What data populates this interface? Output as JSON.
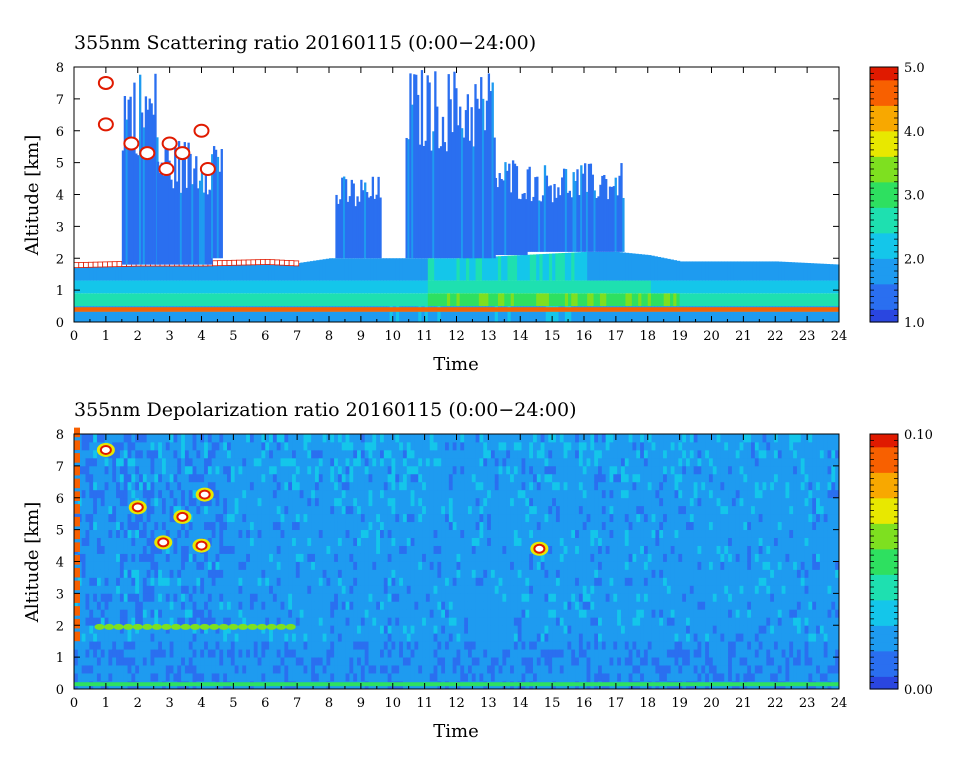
{
  "colors": {
    "colormap": [
      "#2a46e0",
      "#2a6ff0",
      "#1e9bf0",
      "#14c6ea",
      "#1ee0b0",
      "#2ee060",
      "#7ee020",
      "#e8e800",
      "#f8a800",
      "#f86000",
      "#e01a00"
    ],
    "cloud_outline": "#ffffff",
    "ground_line": "#e07020"
  },
  "chart_data": [
    {
      "type": "heatmap",
      "title": "355nm Scattering ratio  20160115 (0:00−24:00)",
      "xlabel": "Time",
      "ylabel": "Altitude [km]",
      "xlim": [
        0,
        24
      ],
      "ylim": [
        0,
        8
      ],
      "xticks": [
        "0",
        "1",
        "2",
        "3",
        "4",
        "5",
        "6",
        "7",
        "8",
        "9",
        "10",
        "11",
        "12",
        "13",
        "14",
        "15",
        "16",
        "17",
        "18",
        "19",
        "20",
        "21",
        "22",
        "23",
        "24"
      ],
      "yticks": [
        "0",
        "1",
        "2",
        "3",
        "4",
        "5",
        "6",
        "7",
        "8"
      ],
      "colorbar": {
        "range": [
          1.0,
          5.0
        ],
        "ticks": [
          "1.0",
          "2.0",
          "3.0",
          "4.0",
          "5.0"
        ]
      },
      "features": {
        "boundary_layer_top_km": [
          [
            0,
            1.8
          ],
          [
            2,
            1.85
          ],
          [
            4,
            1.85
          ],
          [
            6,
            1.9
          ],
          [
            7,
            1.85
          ],
          [
            8,
            2.0
          ],
          [
            10,
            2.0
          ],
          [
            12,
            2.0
          ],
          [
            14,
            2.1
          ],
          [
            16,
            2.2
          ],
          [
            17,
            2.2
          ],
          [
            18,
            2.1
          ],
          [
            19,
            1.9
          ],
          [
            20,
            1.9
          ],
          [
            22,
            1.9
          ],
          [
            24,
            1.8
          ]
        ],
        "ground_layer_km": 0.4,
        "cloud_columns": [
          {
            "start": 1.5,
            "end": 2.6,
            "base": 1.8,
            "top": 8.0
          },
          {
            "start": 2.6,
            "end": 4.3,
            "base": 1.8,
            "top": 5.8
          },
          {
            "start": 4.3,
            "end": 4.6,
            "base": 2.0,
            "top": 6.0
          },
          {
            "start": 8.2,
            "end": 9.6,
            "base": 2.0,
            "top": 4.6
          },
          {
            "start": 10.4,
            "end": 13.2,
            "base": 2.0,
            "top": 8.0
          },
          {
            "start": 13.2,
            "end": 14.2,
            "base": 2.1,
            "top": 5.2
          },
          {
            "start": 14.2,
            "end": 17.2,
            "base": 2.2,
            "top": 5.0
          }
        ]
      }
    },
    {
      "type": "heatmap",
      "title": "355nm Depolarization ratio  20160115 (0:00−24:00)",
      "xlabel": "Time",
      "ylabel": "Altitude [km]",
      "xlim": [
        0,
        24
      ],
      "ylim": [
        0,
        8
      ],
      "xticks": [
        "0",
        "1",
        "2",
        "3",
        "4",
        "5",
        "6",
        "7",
        "8",
        "9",
        "10",
        "11",
        "12",
        "13",
        "14",
        "15",
        "16",
        "17",
        "18",
        "19",
        "20",
        "21",
        "22",
        "23",
        "24"
      ],
      "yticks": [
        "0",
        "1",
        "2",
        "3",
        "4",
        "5",
        "6",
        "7",
        "8"
      ],
      "colorbar": {
        "range": [
          0.0,
          0.1
        ],
        "ticks": [
          "0.00",
          "0.10"
        ]
      },
      "features": {
        "ice_cloud_patches": [
          {
            "x": 1.0,
            "y": 7.5
          },
          {
            "x": 2.0,
            "y": 5.7
          },
          {
            "x": 2.8,
            "y": 4.6
          },
          {
            "x": 3.4,
            "y": 5.4
          },
          {
            "x": 4.0,
            "y": 4.5
          },
          {
            "x": 4.1,
            "y": 6.1
          },
          {
            "x": 14.6,
            "y": 4.4
          }
        ],
        "near_surface_layer_km": 0.15
      }
    }
  ]
}
